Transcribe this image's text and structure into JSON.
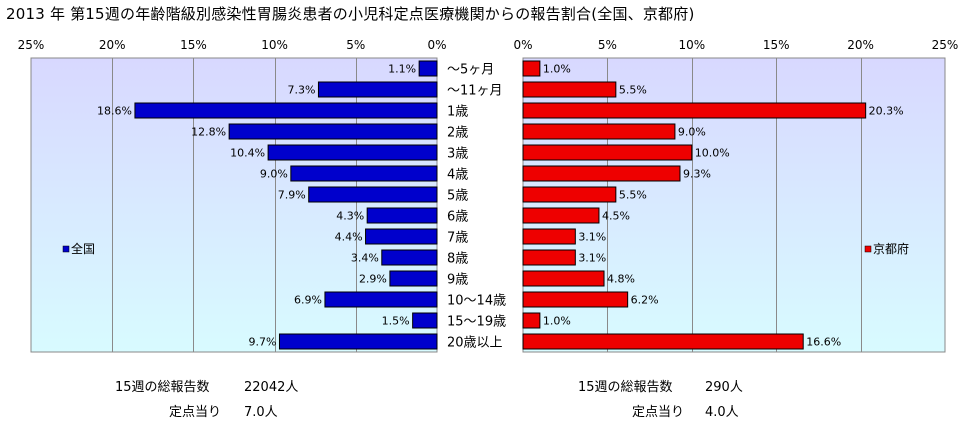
{
  "title": "2013 年 第15週の年齢階級別感染性胃腸炎患者の小児科定点医療機関からの報告割合(全国、京都府)",
  "colors": {
    "national": "#0000cc",
    "kyoto": "#ee0000",
    "plot_bg_top": "#d8d8ff",
    "plot_bg_bottom": "#d8fbff"
  },
  "chart_data": [
    {
      "type": "bar",
      "orientation": "horizontal",
      "direction": "right-to-left",
      "categories": [
        "～5ヶ月",
        "～11ヶ月",
        "1歳",
        "2歳",
        "3歳",
        "4歳",
        "5歳",
        "6歳",
        "7歳",
        "8歳",
        "9歳",
        "10～14歳",
        "15～19歳",
        "20歳以上"
      ],
      "series": [
        {
          "name": "全国",
          "values": [
            1.1,
            7.3,
            18.6,
            12.8,
            10.4,
            9.0,
            7.9,
            4.3,
            4.4,
            3.4,
            2.9,
            6.9,
            1.5,
            9.7
          ],
          "labels": [
            "1.1%",
            "7.3%",
            "18.6%",
            "12.8%",
            "10.4%",
            "9.0%",
            "7.9%",
            "4.3%",
            "4.4%",
            "3.4%",
            "2.9%",
            "6.9%",
            "1.5%",
            "9.7%"
          ]
        }
      ],
      "xlim": [
        0,
        25
      ],
      "tick_values": [
        0,
        5,
        10,
        15,
        20,
        25
      ],
      "tick_labels": [
        "0%",
        "5%",
        "10%",
        "15%",
        "20%",
        "25%"
      ],
      "grid": true,
      "legend": "left"
    },
    {
      "type": "bar",
      "orientation": "horizontal",
      "direction": "left-to-right",
      "categories": [
        "～5ヶ月",
        "～11ヶ月",
        "1歳",
        "2歳",
        "3歳",
        "4歳",
        "5歳",
        "6歳",
        "7歳",
        "8歳",
        "9歳",
        "10～14歳",
        "15～19歳",
        "20歳以上"
      ],
      "series": [
        {
          "name": "京都府",
          "values": [
            1.0,
            5.5,
            20.3,
            9.0,
            10.0,
            9.3,
            5.5,
            4.5,
            3.1,
            3.1,
            4.8,
            6.2,
            1.0,
            16.6
          ],
          "labels": [
            "1.0%",
            "5.5%",
            "20.3%",
            "9.0%",
            "10.0%",
            "9.3%",
            "5.5%",
            "4.5%",
            "3.1%",
            "3.1%",
            "4.8%",
            "6.2%",
            "1.0%",
            "16.6%"
          ]
        }
      ],
      "xlim": [
        0,
        25
      ],
      "tick_values": [
        0,
        5,
        10,
        15,
        20,
        25
      ],
      "tick_labels": [
        "0%",
        "5%",
        "10%",
        "15%",
        "20%",
        "25%"
      ],
      "grid": true,
      "legend": "right"
    }
  ],
  "footer": {
    "national": {
      "total_label": "15週の総報告数",
      "total_value": "22042人",
      "per_label": "定点当り",
      "per_value": "7.0人"
    },
    "kyoto": {
      "total_label": "15週の総報告数",
      "total_value": "290人",
      "per_label": "定点当り",
      "per_value": "4.0人"
    }
  }
}
